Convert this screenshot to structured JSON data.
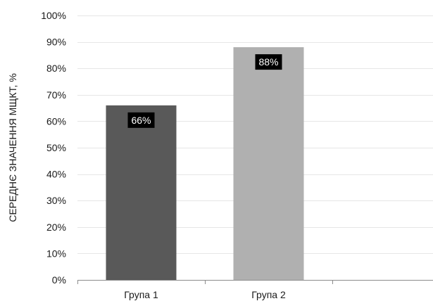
{
  "chart_data": {
    "type": "bar",
    "categories": [
      "Група 1",
      "Група 2"
    ],
    "values": [
      66,
      88
    ],
    "data_labels": [
      "66%",
      "88%"
    ],
    "ylabel": "СЕРЕДНЄ ЗНАЧЕННЯ МЩКТ, %",
    "ylim": [
      0,
      100
    ],
    "y_ticks": [
      0,
      10,
      20,
      30,
      40,
      50,
      60,
      70,
      80,
      90,
      100
    ],
    "y_tick_labels": [
      "0%",
      "10%",
      "20%",
      "30%",
      "40%",
      "50%",
      "60%",
      "70%",
      "80%",
      "90%",
      "100%"
    ],
    "bar_colors": [
      "#595959",
      "#b0b0b0"
    ],
    "data_label_background": "#000000",
    "grid": true,
    "legend": "none"
  }
}
